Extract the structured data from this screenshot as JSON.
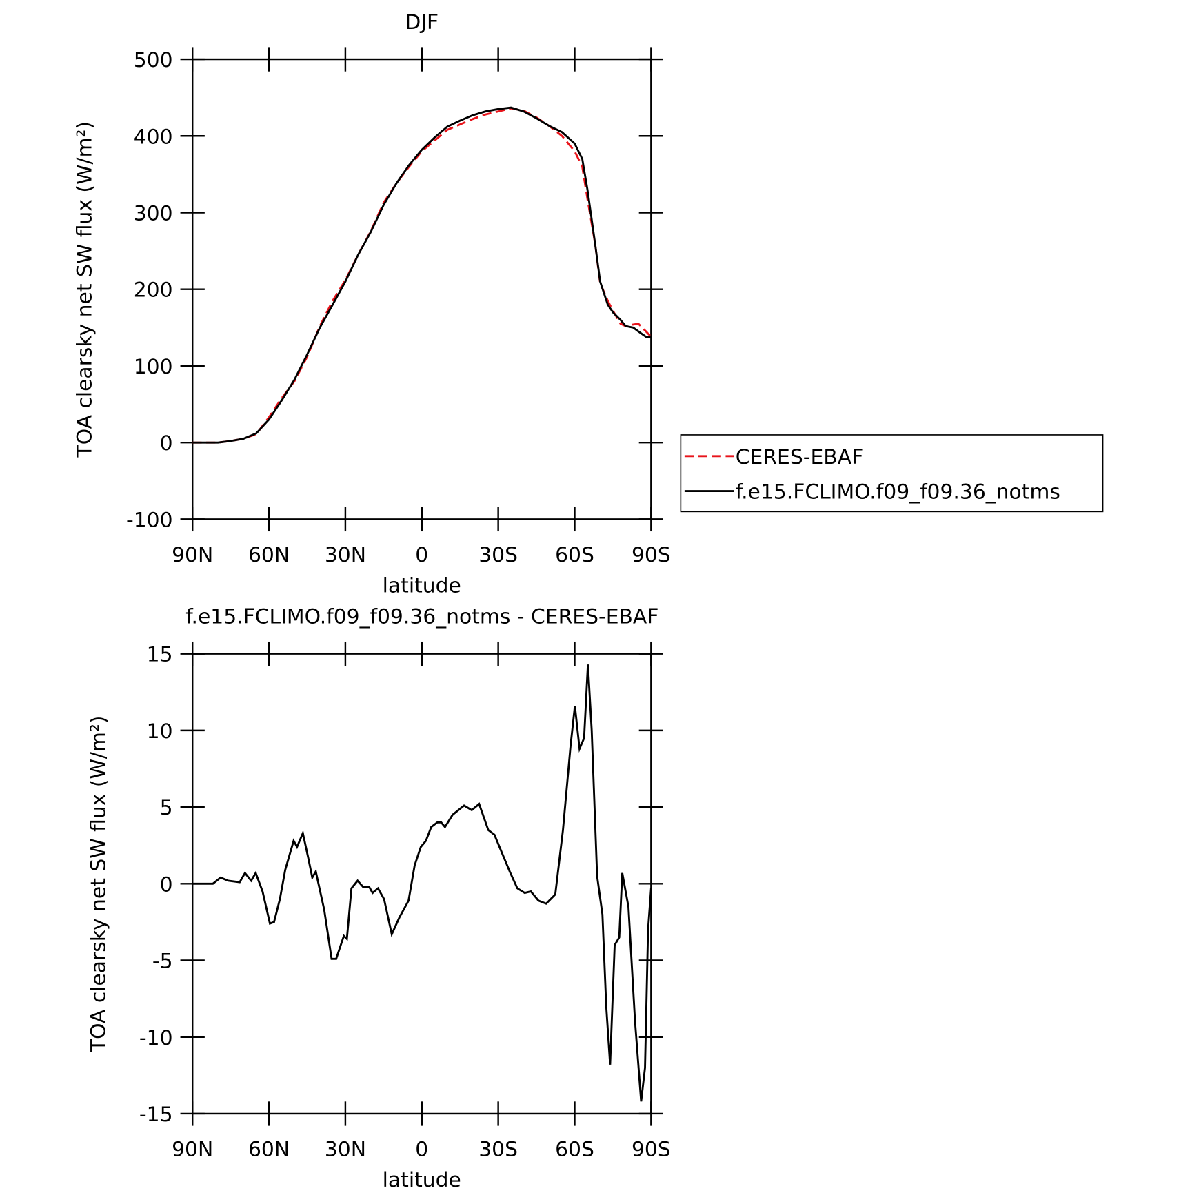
{
  "chart_data": [
    {
      "type": "line",
      "title": "DJF",
      "xlabel": "latitude",
      "ylabel": "TOA clearsky net SW flux (W/m²)",
      "x": [
        90,
        85,
        80,
        75,
        70,
        65,
        60,
        55,
        50,
        45,
        40,
        35,
        30,
        25,
        20,
        15,
        10,
        5,
        0,
        -5,
        -10,
        -15,
        -20,
        -25,
        -30,
        -35,
        -40,
        -45,
        -50,
        -55,
        -60,
        -63,
        -65,
        -68,
        -70,
        -73,
        -75,
        -78,
        -80,
        -83,
        -85,
        -88,
        -90
      ],
      "xlim": [
        90,
        -90
      ],
      "xticks": [
        {
          "value": 90,
          "label": "90N"
        },
        {
          "value": 60,
          "label": "60N"
        },
        {
          "value": 30,
          "label": "30N"
        },
        0,
        {
          "value": -30,
          "label": "30S"
        },
        {
          "value": -60,
          "label": "60S"
        },
        {
          "value": -90,
          "label": "90S"
        }
      ],
      "ylim": [
        -100,
        500
      ],
      "yticks": [
        -100,
        0,
        100,
        200,
        300,
        400,
        500
      ],
      "legend": "right",
      "series": [
        {
          "name": "CERES-EBAF",
          "color": "#e8141b",
          "style": "dashed",
          "values": [
            0,
            0,
            0,
            2,
            5,
            11,
            33,
            58,
            80,
            112,
            152,
            185,
            212,
            245,
            276,
            313,
            338,
            360,
            380,
            394,
            408,
            415,
            422,
            428,
            432,
            436,
            433,
            424,
            413,
            400,
            380,
            360,
            318,
            260,
            208,
            185,
            172,
            155,
            152,
            154,
            155,
            145,
            138
          ]
        },
        {
          "name": "f.e15.FCLIMO.f09_f09.36_notms",
          "color": "#000000",
          "style": "solid",
          "values": [
            0,
            0,
            0,
            2,
            5,
            12,
            30,
            55,
            82,
            115,
            150,
            180,
            210,
            245,
            275,
            310,
            338,
            362,
            382,
            398,
            412,
            420,
            427,
            432,
            435,
            437,
            432,
            423,
            413,
            405,
            390,
            370,
            330,
            260,
            210,
            180,
            170,
            160,
            152,
            150,
            145,
            138,
            138
          ]
        }
      ]
    },
    {
      "type": "line",
      "title": "f.e15.FCLIMO.f09_f09.36_notms - CERES-EBAF",
      "xlabel": "latitude",
      "ylabel": "TOA clearsky net SW flux (W/m²)",
      "x": [
        90,
        82,
        79,
        76,
        71.5,
        69.4,
        67,
        65.2,
        62.5,
        59.6,
        58,
        55.7,
        53.6,
        50.3,
        49,
        46.7,
        44.6,
        43,
        41.6,
        38.3,
        35.4,
        33.6,
        30.6,
        29.4,
        27.6,
        25.2,
        23.1,
        20.7,
        19.3,
        17.2,
        14.8,
        11.8,
        8.8,
        5.2,
        2.8,
        0.4,
        -1.6,
        -3.7,
        -6.1,
        -7.6,
        -9.1,
        -12.1,
        -16.6,
        -19.6,
        -22.5,
        -26.1,
        -28.5,
        -31.5,
        -34.5,
        -37.5,
        -40.4,
        -42.8,
        -45.8,
        -48.8,
        -52.4,
        -55.4,
        -58.4,
        -60.1,
        -61.9,
        -63.7,
        -65.2,
        -66.7,
        -68.8,
        -70.9,
        -72.4,
        -73.9,
        -75.7,
        -77.5,
        -78.7,
        -81.1,
        -83.7,
        -86.1,
        -87.6,
        -88.8,
        -90
      ],
      "xlim": [
        90,
        -90
      ],
      "xticks": [
        {
          "value": 90,
          "label": "90N"
        },
        {
          "value": 60,
          "label": "60N"
        },
        {
          "value": 30,
          "label": "30N"
        },
        0,
        {
          "value": -30,
          "label": "30S"
        },
        {
          "value": -60,
          "label": "60S"
        },
        {
          "value": -90,
          "label": "90S"
        }
      ],
      "ylim": [
        -15,
        15
      ],
      "yticks": [
        -15,
        -10,
        -5,
        0,
        5,
        10,
        15
      ],
      "series": [
        {
          "color": "#000000",
          "style": "solid",
          "values": [
            0,
            0,
            0.4,
            0.2,
            0.1,
            0.7,
            0.2,
            0.7,
            -0.5,
            -2.6,
            -2.5,
            -1,
            0.9,
            2.8,
            2.4,
            3.3,
            1.7,
            0.4,
            0.8,
            -1.7,
            -4.9,
            -4.9,
            -3.4,
            -3.6,
            -0.3,
            0.2,
            -0.2,
            -0.2,
            -0.6,
            -0.3,
            -1,
            -3.3,
            -2.2,
            -1.1,
            1.2,
            2.4,
            2.8,
            3.7,
            4,
            4,
            3.7,
            4.5,
            5.1,
            4.8,
            5.2,
            3.5,
            3.2,
            2,
            0.8,
            -0.3,
            -0.6,
            -0.5,
            -1.1,
            -1.3,
            -0.7,
            3.5,
            9,
            11.6,
            8.8,
            9.5,
            14.3,
            10,
            0.5,
            -2,
            -8,
            -11.8,
            -4,
            -3.5,
            0.7,
            -1.5,
            -9,
            -14.2,
            -12,
            -3,
            -0.3
          ]
        }
      ]
    }
  ]
}
